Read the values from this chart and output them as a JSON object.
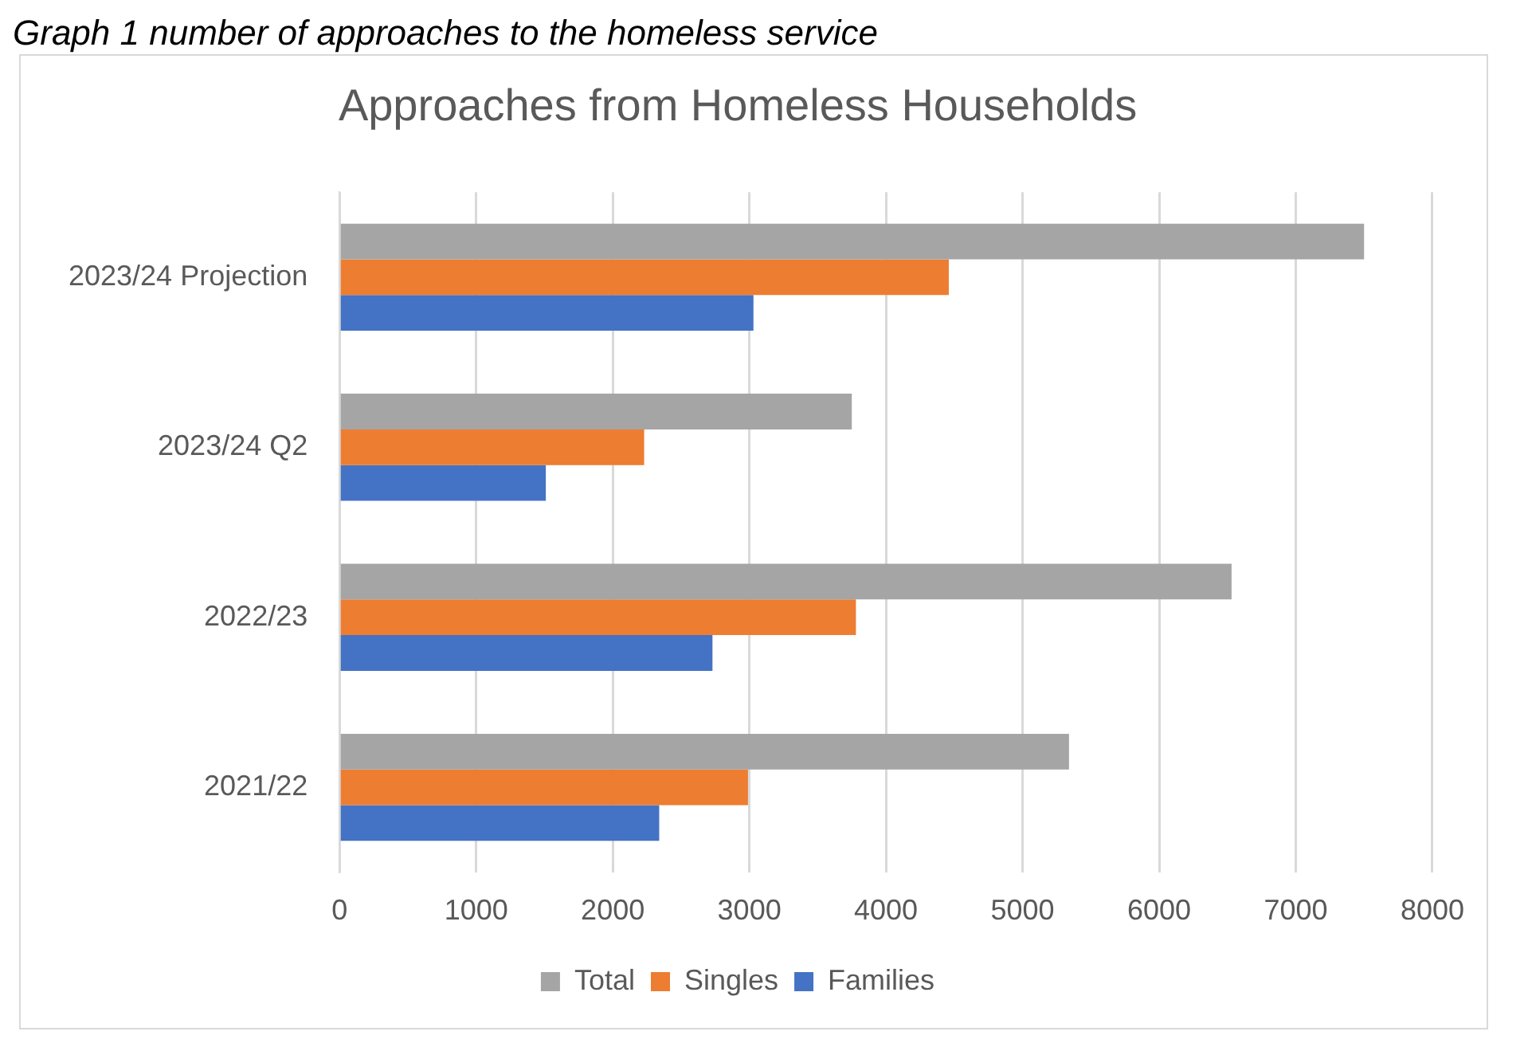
{
  "chart_data": {
    "type": "bar",
    "orientation": "horizontal",
    "title": "Approaches from Homeless Households",
    "annotations": [
      "Graph 1 number of approaches to the homeless service"
    ],
    "categories": [
      "2023/24 Projection",
      "2023/24 Q2",
      "2022/23",
      "2021/22"
    ],
    "series": [
      {
        "name": "Total",
        "color": "#a5a5a5",
        "values": [
          7500,
          3750,
          6530,
          5340
        ]
      },
      {
        "name": "Singles",
        "color": "#ed7d31",
        "values": [
          4460,
          2230,
          3780,
          2990
        ]
      },
      {
        "name": "Families",
        "color": "#4472c4",
        "values": [
          3030,
          1510,
          2730,
          2340
        ]
      }
    ],
    "xlim": [
      0,
      8000
    ],
    "xticks": [
      0,
      1000,
      2000,
      3000,
      4000,
      5000,
      6000,
      7000,
      8000
    ],
    "grid": "x",
    "legend": "bottom"
  }
}
